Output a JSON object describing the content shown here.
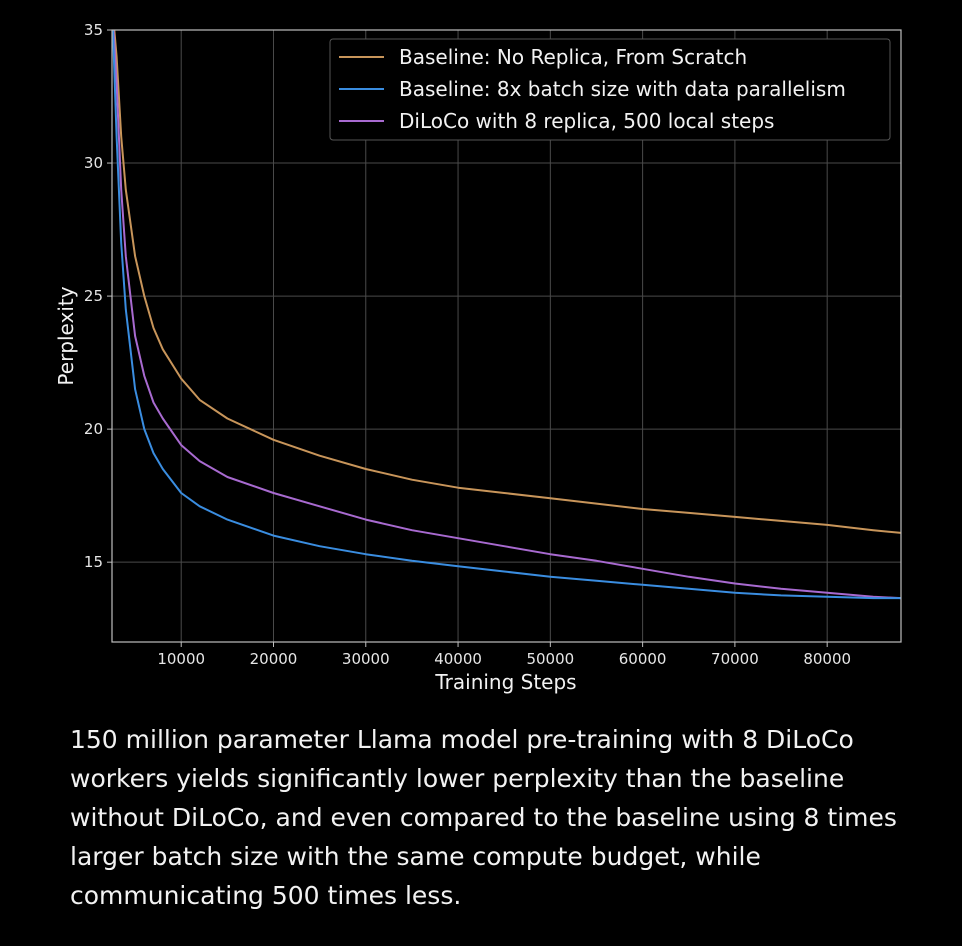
{
  "chart_data": {
    "type": "line",
    "xlabel": "Training Steps",
    "ylabel": "Perplexity",
    "xlim": [
      2500,
      88000
    ],
    "ylim": [
      12,
      35
    ],
    "xticks": [
      10000,
      20000,
      30000,
      40000,
      50000,
      60000,
      70000,
      80000
    ],
    "yticks": [
      15,
      20,
      25,
      30,
      35
    ],
    "grid": true,
    "legend_position": "top-right",
    "series": [
      {
        "name": "Baseline: No Replica, From Scratch",
        "color": "#c8955a",
        "x": [
          2500,
          3000,
          3500,
          4000,
          5000,
          6000,
          7000,
          8000,
          10000,
          12000,
          15000,
          20000,
          25000,
          30000,
          35000,
          40000,
          45000,
          50000,
          55000,
          60000,
          65000,
          70000,
          75000,
          80000,
          85000,
          88000
        ],
        "y": [
          36,
          34,
          31,
          29,
          26.5,
          25,
          23.8,
          23,
          21.9,
          21.1,
          20.4,
          19.6,
          19,
          18.5,
          18.1,
          17.8,
          17.6,
          17.4,
          17.2,
          17,
          16.85,
          16.7,
          16.55,
          16.4,
          16.2,
          16.1
        ]
      },
      {
        "name": "Baseline: 8x batch size with data parallelism",
        "color": "#3a8de0",
        "x": [
          2500,
          3000,
          3500,
          4000,
          5000,
          6000,
          7000,
          8000,
          10000,
          12000,
          15000,
          20000,
          25000,
          30000,
          35000,
          40000,
          45000,
          50000,
          55000,
          60000,
          65000,
          70000,
          75000,
          80000,
          85000,
          88000
        ],
        "y": [
          36,
          31,
          27,
          24.5,
          21.5,
          20,
          19.1,
          18.5,
          17.6,
          17.1,
          16.6,
          16,
          15.6,
          15.3,
          15.05,
          14.85,
          14.65,
          14.45,
          14.3,
          14.15,
          14,
          13.85,
          13.75,
          13.7,
          13.65,
          13.65
        ]
      },
      {
        "name": "DiLoCo with 8 replica, 500 local steps",
        "color": "#a86ad0",
        "x": [
          2500,
          3000,
          3500,
          4000,
          5000,
          6000,
          7000,
          8000,
          10000,
          12000,
          15000,
          20000,
          25000,
          30000,
          35000,
          40000,
          45000,
          50000,
          55000,
          60000,
          65000,
          70000,
          75000,
          80000,
          85000,
          88000
        ],
        "y": [
          36,
          33,
          29,
          26.5,
          23.5,
          22,
          21,
          20.4,
          19.4,
          18.8,
          18.2,
          17.6,
          17.1,
          16.6,
          16.2,
          15.9,
          15.6,
          15.3,
          15.05,
          14.75,
          14.45,
          14.2,
          14,
          13.85,
          13.7,
          13.65
        ]
      }
    ]
  },
  "caption": "150 million parameter Llama model pre-training with 8 DiLoCo workers yields significantly lower perplexity than the baseline without DiLoCo, and even compared to the baseline using 8 times larger batch size with the same compute budget, while communicating 500 times less."
}
